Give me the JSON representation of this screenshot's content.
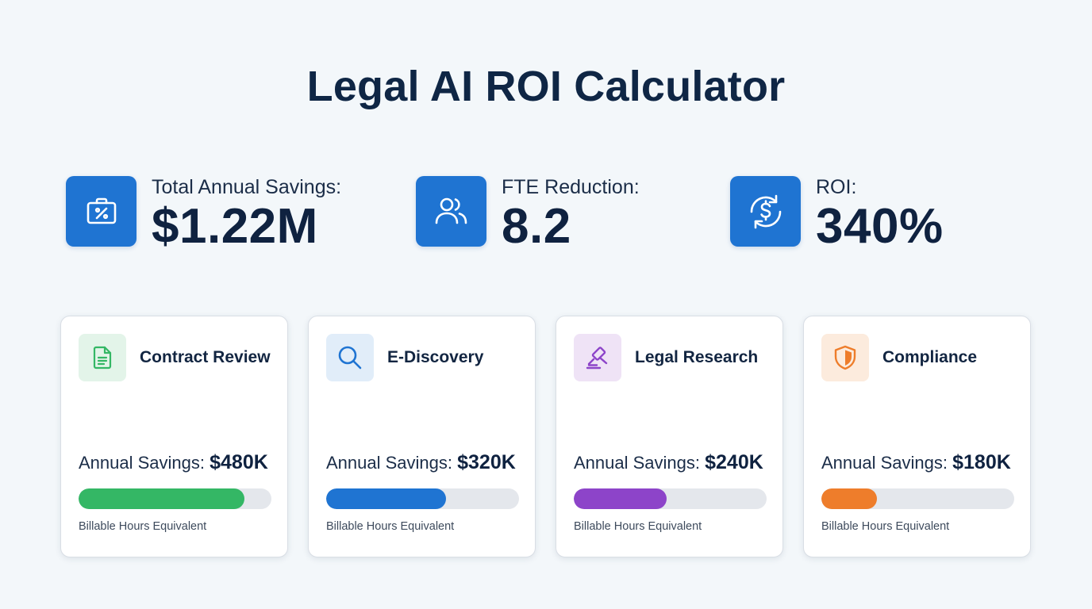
{
  "title": "Legal AI ROI Calculator",
  "kpis": [
    {
      "label": "Total Annual Savings:",
      "value": "$1.22M",
      "icon": "briefcase-percent-icon"
    },
    {
      "label": "FTE Reduction:",
      "value": "8.2",
      "icon": "users-icon"
    },
    {
      "label": "ROI:",
      "value": "340%",
      "icon": "dollar-cycle-icon"
    }
  ],
  "cards": [
    {
      "title": "Contract Review",
      "savings_label": "Annual Savings:",
      "savings_value": "$480K",
      "progress": 0.86,
      "caption": "Billable Hours Equivalent",
      "icon": "document-icon",
      "accent": "#34b765",
      "icon_bg": "#e3f4e9"
    },
    {
      "title": "E-Discovery",
      "savings_label": "Annual Savings:",
      "savings_value": "$320K",
      "progress": 0.62,
      "caption": "Billable Hours Equivalent",
      "icon": "search-icon",
      "accent": "#1f74d2",
      "icon_bg": "#e1edf9"
    },
    {
      "title": "Legal Research",
      "savings_label": "Annual Savings:",
      "savings_value": "$240K",
      "progress": 0.48,
      "caption": "Billable Hours Equivalent",
      "icon": "gavel-icon",
      "accent": "#8d44c9",
      "icon_bg": "#efe3f6"
    },
    {
      "title": "Compliance",
      "savings_label": "Annual Savings:",
      "savings_value": "$180K",
      "progress": 0.29,
      "caption": "Billable Hours Equivalent",
      "icon": "shield-icon",
      "accent": "#ee7d2b",
      "icon_bg": "#fcebdd"
    }
  ]
}
